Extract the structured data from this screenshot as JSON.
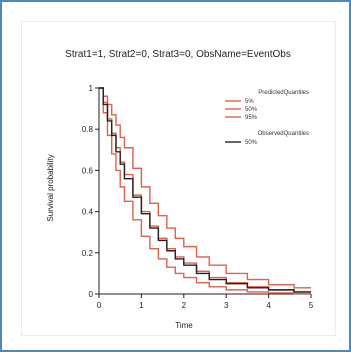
{
  "chart_data": {
    "type": "line",
    "title": "Strat1=1, Strat2=0, Strat3=0, ObsName=EventObs",
    "xlabel": "Time",
    "ylabel": "Survival probability",
    "xlim": [
      0,
      5
    ],
    "ylim": [
      0,
      1
    ],
    "x_ticks": [
      "0",
      "1",
      "2",
      "3",
      "4",
      "5"
    ],
    "y_ticks": [
      "0",
      "0.2",
      "0.4",
      "0.6",
      "0.8",
      "1"
    ],
    "x_tick_values": [
      0,
      1,
      2,
      3,
      4,
      5
    ],
    "y_tick_values": [
      0,
      0.2,
      0.4,
      0.6,
      0.8,
      1
    ],
    "grid": false,
    "legend_position": "top-right",
    "legend_groups": [
      {
        "title": "PredictedQuantiles",
        "color": "#e0604a",
        "items": [
          "5%",
          "50%",
          "95%"
        ]
      },
      {
        "title": "ObservedQuantiles",
        "color": "#222222",
        "items": [
          "50%"
        ]
      }
    ],
    "series": [
      {
        "name": "5%",
        "group": "PredictedQuantiles",
        "color": "#e0604a",
        "step": true,
        "points": [
          [
            0,
            1
          ],
          [
            0.1,
            0.88
          ],
          [
            0.2,
            0.77
          ],
          [
            0.3,
            0.68
          ],
          [
            0.4,
            0.6
          ],
          [
            0.5,
            0.52
          ],
          [
            0.6,
            0.45
          ],
          [
            0.8,
            0.36
          ],
          [
            1,
            0.28
          ],
          [
            1.2,
            0.22
          ],
          [
            1.4,
            0.17
          ],
          [
            1.6,
            0.13
          ],
          [
            1.8,
            0.1
          ],
          [
            2,
            0.08
          ],
          [
            2.3,
            0.055
          ],
          [
            2.6,
            0.035
          ],
          [
            3,
            0.02
          ],
          [
            3.5,
            0.01
          ],
          [
            4,
            0.005
          ],
          [
            4.6,
            0.002
          ]
        ]
      },
      {
        "name": "50%",
        "group": "PredictedQuantiles",
        "color": "#e0604a",
        "step": true,
        "points": [
          [
            0,
            1
          ],
          [
            0.1,
            0.93
          ],
          [
            0.2,
            0.85
          ],
          [
            0.3,
            0.78
          ],
          [
            0.4,
            0.71
          ],
          [
            0.5,
            0.64
          ],
          [
            0.6,
            0.58
          ],
          [
            0.8,
            0.48
          ],
          [
            1,
            0.4
          ],
          [
            1.2,
            0.33
          ],
          [
            1.4,
            0.27
          ],
          [
            1.6,
            0.22
          ],
          [
            1.8,
            0.18
          ],
          [
            2,
            0.15
          ],
          [
            2.3,
            0.11
          ],
          [
            2.6,
            0.08
          ],
          [
            3,
            0.055
          ],
          [
            3.5,
            0.035
          ],
          [
            4,
            0.02
          ],
          [
            4.6,
            0.01
          ]
        ]
      },
      {
        "name": "95%",
        "group": "PredictedQuantiles",
        "color": "#e0604a",
        "step": true,
        "points": [
          [
            0,
            1
          ],
          [
            0.1,
            0.96
          ],
          [
            0.2,
            0.92
          ],
          [
            0.3,
            0.87
          ],
          [
            0.4,
            0.82
          ],
          [
            0.5,
            0.76
          ],
          [
            0.6,
            0.71
          ],
          [
            0.8,
            0.61
          ],
          [
            1,
            0.52
          ],
          [
            1.2,
            0.44
          ],
          [
            1.4,
            0.38
          ],
          [
            1.6,
            0.32
          ],
          [
            1.8,
            0.27
          ],
          [
            2,
            0.23
          ],
          [
            2.3,
            0.18
          ],
          [
            2.6,
            0.14
          ],
          [
            3,
            0.1
          ],
          [
            3.5,
            0.07
          ],
          [
            4,
            0.045
          ],
          [
            4.6,
            0.03
          ]
        ]
      },
      {
        "name": "50%",
        "group": "ObservedQuantiles",
        "color": "#222222",
        "step": true,
        "points": [
          [
            0,
            1
          ],
          [
            0.1,
            0.92
          ],
          [
            0.2,
            0.84
          ],
          [
            0.3,
            0.77
          ],
          [
            0.4,
            0.69
          ],
          [
            0.5,
            0.63
          ],
          [
            0.6,
            0.56
          ],
          [
            0.8,
            0.47
          ],
          [
            1,
            0.39
          ],
          [
            1.2,
            0.32
          ],
          [
            1.4,
            0.26
          ],
          [
            1.6,
            0.21
          ],
          [
            1.8,
            0.17
          ],
          [
            2,
            0.14
          ],
          [
            2.3,
            0.1
          ],
          [
            2.6,
            0.07
          ],
          [
            3,
            0.05
          ],
          [
            3.5,
            0.03
          ],
          [
            4,
            0.02
          ],
          [
            4.6,
            0.01
          ]
        ]
      }
    ]
  }
}
